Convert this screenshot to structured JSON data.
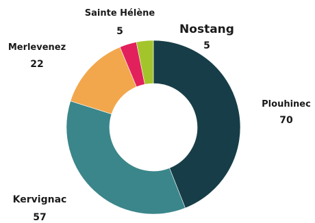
{
  "chart_data": {
    "type": "pie",
    "variant": "donut",
    "title": "",
    "slices": [
      {
        "label": "Plouhinec",
        "value": 70,
        "value_label": "70",
        "color": "#173e48"
      },
      {
        "label": "Kervignac",
        "value": 57,
        "value_label": "57",
        "color": "#3b868a"
      },
      {
        "label": "Merlevenez",
        "value": 22,
        "value_label": "22",
        "color": "#f2a74c"
      },
      {
        "label": "Sainte Hélène",
        "value": 5,
        "value_label": "5",
        "color": "#e2215c"
      },
      {
        "label": "Nostang",
        "value": 5,
        "value_label": "5",
        "color": "#a3c52b"
      }
    ],
    "start_angle": "12 o'clock",
    "direction": "clockwise",
    "legend": "none",
    "labels": "outside"
  }
}
